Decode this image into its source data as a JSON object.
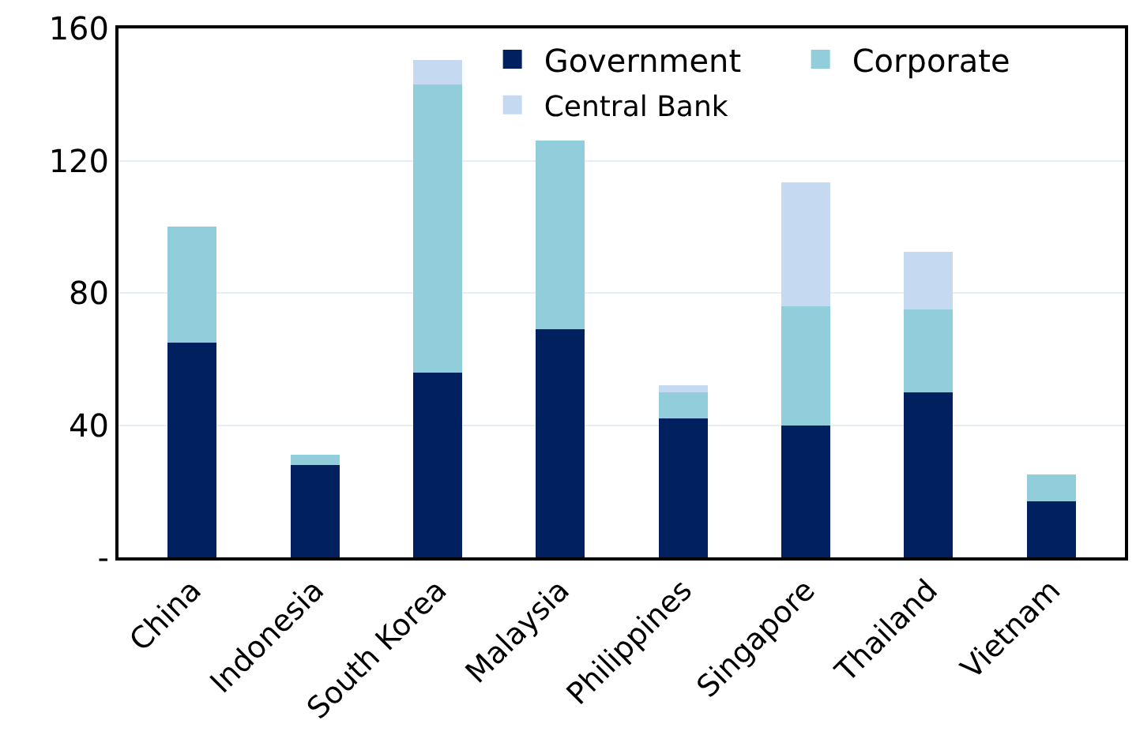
{
  "chart_data": {
    "type": "bar",
    "stacked": true,
    "categories": [
      "China",
      "Indonesia",
      "South Korea",
      "Malaysia",
      "Philippines",
      "Singapore",
      "Thailand",
      "Vietnam"
    ],
    "series": [
      {
        "name": "Government",
        "color": "#002060",
        "values": [
          65,
          28,
          56,
          69,
          42,
          40,
          50,
          17
        ]
      },
      {
        "name": "Corporate",
        "color": "#92cddc",
        "values": [
          35,
          3,
          87,
          57,
          8,
          36,
          25,
          8
        ]
      },
      {
        "name": "Central Bank",
        "color": "#c5d9f1",
        "values": [
          0,
          0,
          7.5,
          0,
          2,
          37.5,
          17.5,
          0
        ]
      }
    ],
    "ylim": [
      0,
      160
    ],
    "yticks": [
      {
        "value": 0,
        "label": "-"
      },
      40,
      80,
      120,
      160
    ],
    "grid": "y",
    "legend": "top right"
  }
}
